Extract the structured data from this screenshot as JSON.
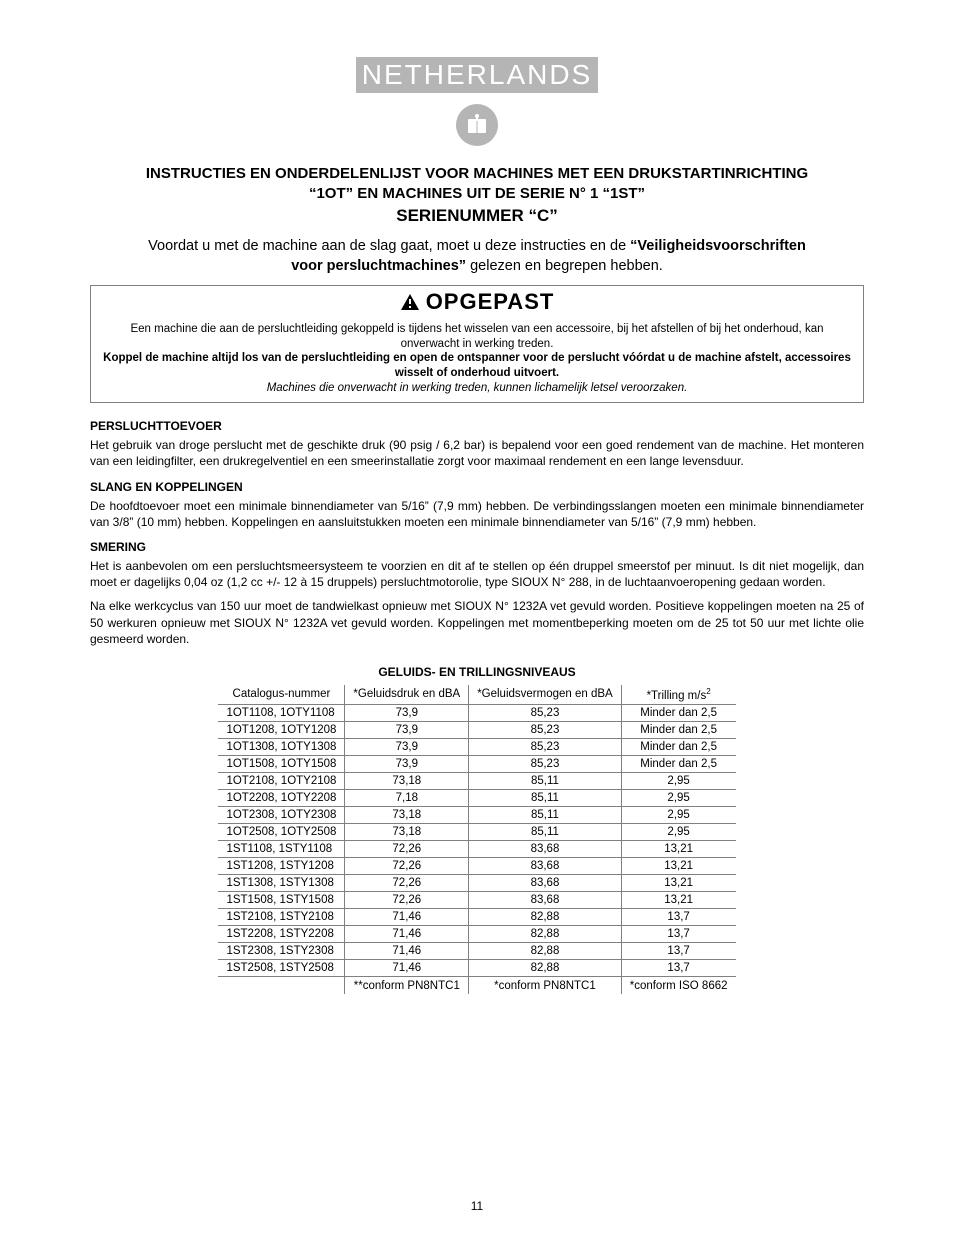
{
  "page_number": "11",
  "header": {
    "country": "NETHERLANDS"
  },
  "title": {
    "line1": "INSTRUCTIES EN ONDERDELENLIJST VOOR MACHINES MET EEN DRUKSTARTINRICHTING",
    "line2": "“1OT” EN MACHINES UIT DE SERIE N° 1 “1ST”",
    "line3": "SERIENUMMER “C”"
  },
  "intro": {
    "pre": "Voordat u met de machine aan de slag gaat, moet u deze instructies en de ",
    "bold1": "“Veiligheidsvoorschriften",
    "bold2": "voor persluchtmachines”",
    "post": " gelezen en begrepen hebben."
  },
  "warning": {
    "label": "OPGEPAST",
    "line1": "Een machine die aan de persluchtleiding gekoppeld is tijdens het wisselen van een accessoire, bij het afstellen of bij het onderhoud, kan onverwacht in werking treden.",
    "line2_bold": "Koppel de machine altijd los van de persluchtleiding en open de ontspanner voor de perslucht vóórdat u de machine afstelt, accessoires wisselt of onderhoud uitvoert.",
    "line3_italic": "Machines die onverwacht in werking treden, kunnen lichamelijk letsel veroorzaken."
  },
  "sections": [
    {
      "heading": "PERSLUCHTTOEVOER",
      "paragraphs": [
        "Het gebruik van droge perslucht met de geschikte druk (90 psig / 6,2 bar) is bepalend voor een goed rendement van de machine. Het monteren van een leidingfilter, een drukregelventiel en een smeerinstallatie zorgt voor maximaal rendement en een lange levensduur."
      ]
    },
    {
      "heading": "SLANG EN KOPPELINGEN",
      "paragraphs": [
        "De hoofdtoevoer moet een minimale binnendiameter van 5/16” (7,9 mm) hebben. De verbindingsslangen moeten een minimale binnendiameter van 3/8” (10 mm) hebben. Koppelingen en aansluitstukken moeten een minimale binnendiameter van 5/16” (7,9 mm) hebben."
      ]
    },
    {
      "heading": "SMERING",
      "paragraphs": [
        "Het is aanbevolen om een persluchtsmeersysteem te voorzien en dit af te stellen op één druppel smeerstof per minuut. Is dit niet mogelijk, dan moet er dagelijks 0,04 oz (1,2 cc +/- 12 à 15 druppels) persluchtmotorolie, type SIOUX N° 288, in de luchtaanvoeropening gedaan worden.",
        "Na elke werkcyclus van 150 uur moet de tandwielkast opnieuw met SIOUX N° 1232A vet gevuld worden. Positieve koppelingen moeten na 25 of 50 werkuren opnieuw met SIOUX N° 1232A vet gevuld worden. Koppelingen met momentbeperking moeten om de 25 tot 50 uur met lichte olie gesmeerd worden."
      ]
    }
  ],
  "table": {
    "title": "GELUIDS- EN TRILLINGSNIVEAUS",
    "columns": [
      "Catalogus-nummer",
      "*Geluidsdruk en dBA",
      "*Geluidsvermogen en dBA",
      "*Trilling m/s"
    ],
    "col4_sup": "2",
    "rows": [
      [
        "1OT1108, 1OTY1108",
        "73,9",
        "85,23",
        "Minder dan 2,5"
      ],
      [
        "1OT1208, 1OTY1208",
        "73,9",
        "85,23",
        "Minder dan 2,5"
      ],
      [
        "1OT1308, 1OTY1308",
        "73,9",
        "85,23",
        "Minder dan 2,5"
      ],
      [
        "1OT1508, 1OTY1508",
        "73,9",
        "85,23",
        "Minder dan 2,5"
      ],
      [
        "1OT2108, 1OTY2108",
        "73,18",
        "85,11",
        "2,95"
      ],
      [
        "1OT2208, 1OTY2208",
        "7,18",
        "85,11",
        "2,95"
      ],
      [
        "1OT2308, 1OTY2308",
        "73,18",
        "85,11",
        "2,95"
      ],
      [
        "1OT2508, 1OTY2508",
        "73,18",
        "85,11",
        "2,95"
      ],
      [
        "1ST1108, 1STY1108",
        "72,26",
        "83,68",
        "13,21"
      ],
      [
        "1ST1208, 1STY1208",
        "72,26",
        "83,68",
        "13,21"
      ],
      [
        "1ST1308, 1STY1308",
        "72,26",
        "83,68",
        "13,21"
      ],
      [
        "1ST1508, 1STY1508",
        "72,26",
        "83,68",
        "13,21"
      ],
      [
        "1ST2108, 1STY2108",
        "71,46",
        "82,88",
        "13,7"
      ],
      [
        "1ST2208, 1STY2208",
        "71,46",
        "82,88",
        "13,7"
      ],
      [
        "1ST2308, 1STY2308",
        "71,46",
        "82,88",
        "13,7"
      ],
      [
        "1ST2508, 1STY2508",
        "71,46",
        "82,88",
        "13,7"
      ]
    ],
    "footer": [
      "",
      "**conform PN8NTC1",
      "*conform PN8NTC1",
      "*conform ISO 8662"
    ]
  },
  "styling": {
    "page_bg": "#ffffff",
    "text_color": "#000000",
    "gray_fill": "#b5b5b5",
    "border_color": "#808080",
    "country_fontsize": 28,
    "title_fontsize": 15,
    "title3_fontsize": 17,
    "intro_fontsize": 14.5,
    "warning_header_fontsize": 22,
    "warning_body_fontsize": 11.5,
    "section_heading_fontsize": 12,
    "body_fontsize": 12,
    "table_fontsize": 11.5
  }
}
